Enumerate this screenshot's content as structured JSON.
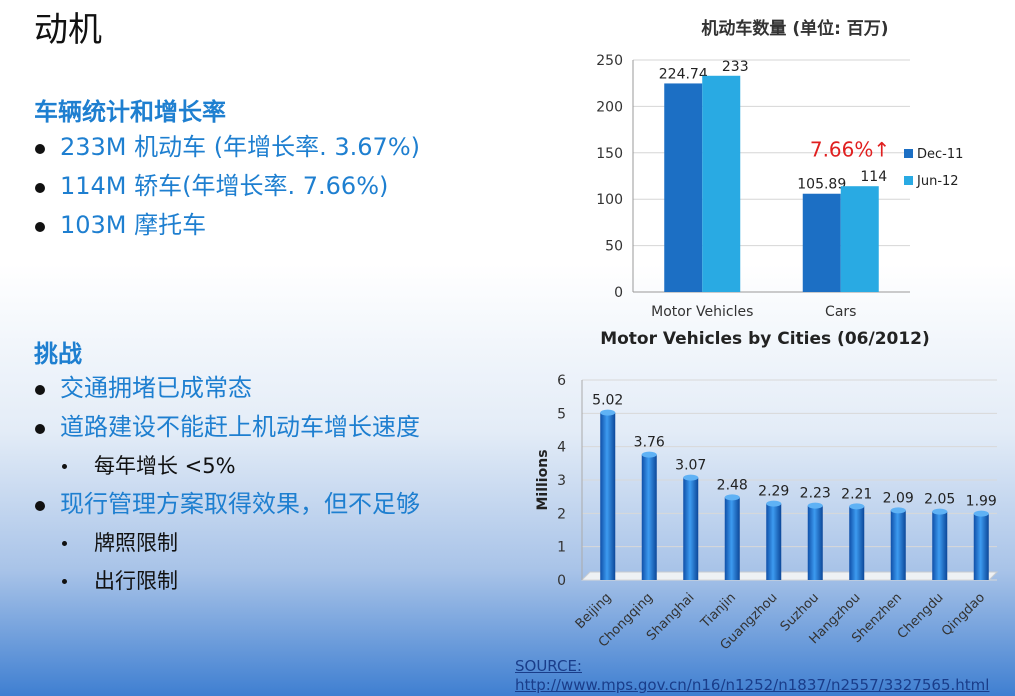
{
  "slide": {
    "title": "动机",
    "section1": {
      "heading": "车辆统计和增长率",
      "bullets": [
        "233M 机动车 (年增长率. 3.67%)",
        "114M 轿车(年增长率. 7.66%)",
        "103M 摩托车"
      ]
    },
    "section2": {
      "heading": "挑战",
      "bullets": [
        {
          "text": "交通拥堵已成常态",
          "level": 1
        },
        {
          "text": "道路建设不能赶上机动车增长速度",
          "level": 1
        },
        {
          "text": "每年增长 <5%",
          "level": 2
        },
        {
          "text": "现行管理方案取得效果，但不足够",
          "level": 1
        },
        {
          "text": "牌照限制",
          "level": 2
        },
        {
          "text": "出行限制",
          "level": 2
        }
      ]
    },
    "source": {
      "label": "SOURCE:",
      "url": "http://www.mps.gov.cn/n16/n1252/n1837/n2557/3327565.html"
    }
  },
  "chart_data": [
    {
      "type": "bar",
      "title": "机动车数量 (单位: 百万)",
      "categories": [
        "Motor Vehicles",
        "Cars"
      ],
      "series": [
        {
          "name": "Dec-11",
          "values": [
            224.74,
            105.89
          ],
          "labels": [
            "224.74",
            "105.89"
          ],
          "color": "#1c6fc4"
        },
        {
          "name": "Jun-12",
          "values": [
            233,
            114
          ],
          "labels": [
            "233",
            "114"
          ],
          "color": "#29aae3"
        }
      ],
      "ylim": [
        0,
        250
      ],
      "yticks": [
        0,
        50,
        100,
        150,
        200,
        250
      ],
      "grid": true,
      "legend": "right",
      "annotation": "7.66%↑"
    },
    {
      "type": "bar",
      "title": "Motor Vehicles by Cities (06/2012)",
      "categories": [
        "Beijing",
        "Chongqing",
        "Shanghai",
        "Tianjin",
        "Guangzhou",
        "Suzhou",
        "Hangzhou",
        "Shenzhen",
        "Chengdu",
        "Qingdao"
      ],
      "values": [
        5.02,
        3.76,
        3.07,
        2.48,
        2.29,
        2.23,
        2.21,
        2.09,
        2.05,
        1.99
      ],
      "labels": [
        "5.02",
        "3.76",
        "3.07",
        "2.48",
        "2.29",
        "2.23",
        "2.21",
        "2.09",
        "2.05",
        "1.99"
      ],
      "ylabel": "Millions",
      "ylim": [
        0,
        6
      ],
      "yticks": [
        0,
        1,
        2,
        3,
        4,
        5,
        6
      ],
      "grid": true,
      "color": "#1e78d8"
    }
  ]
}
